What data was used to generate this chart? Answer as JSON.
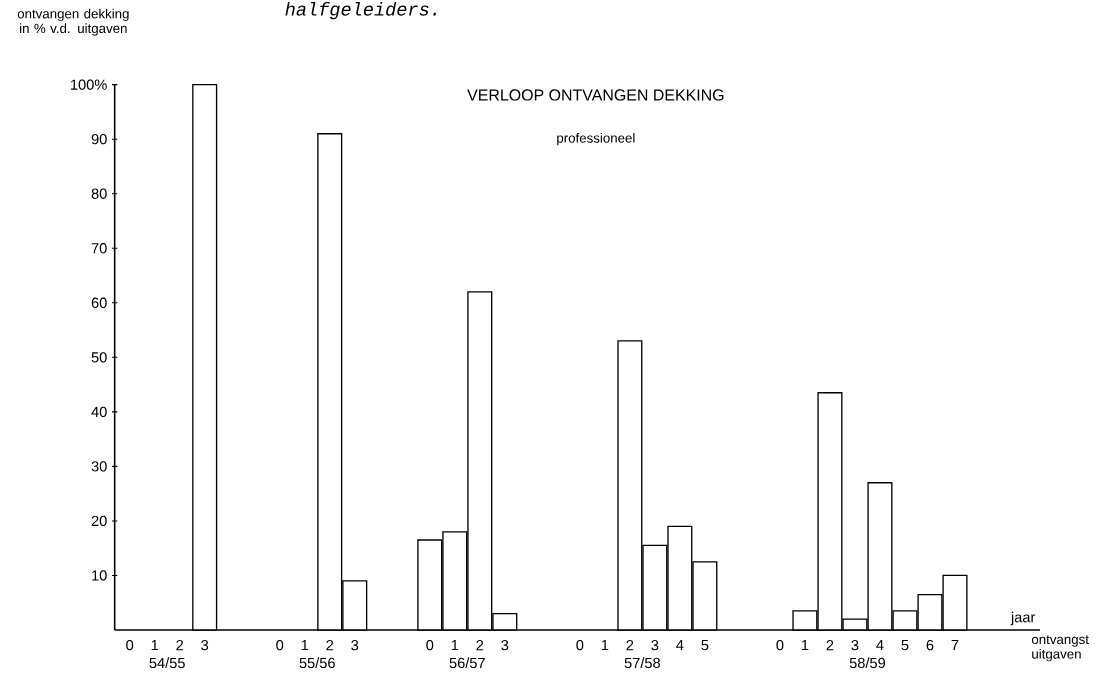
{
  "chart_data": {
    "type": "bar",
    "title": "VERLOOP ONTVANGEN DEKKING",
    "subtitle": "professioneel",
    "ylabel": "ontvangen dekking in % v.d. uitgaven",
    "xlabel": "jaar",
    "annotations": [
      "halfgeleiders.",
      "ontvangst uitgaven",
      "54/55",
      "55/56",
      "56/57",
      "57/58",
      "58/59"
    ],
    "categories": [
      "0",
      "1",
      "2",
      "3",
      null,
      null,
      "0",
      "1",
      "2",
      "3",
      null,
      null,
      "0",
      "1",
      "2",
      "3",
      null,
      null,
      "0",
      "1",
      "2",
      "3",
      "4",
      "5",
      null,
      null,
      "0",
      "1",
      "2",
      "3",
      "4",
      "5",
      "6",
      "7"
    ],
    "values": [
      null,
      null,
      null,
      100,
      null,
      null,
      null,
      null,
      91,
      9,
      null,
      null,
      16.5,
      18,
      62,
      3,
      null,
      null,
      null,
      null,
      53,
      15.5,
      19,
      12.5,
      null,
      null,
      null,
      3.5,
      43.5,
      2,
      27,
      3.5,
      6.5,
      10
    ],
    "color": "#ffffff",
    "ylim": [
      0,
      100
    ],
    "yticks": [
      10,
      20,
      30,
      40,
      50,
      60,
      70,
      80,
      90,
      {
        "value": 100,
        "label": "100%"
      }
    ]
  }
}
